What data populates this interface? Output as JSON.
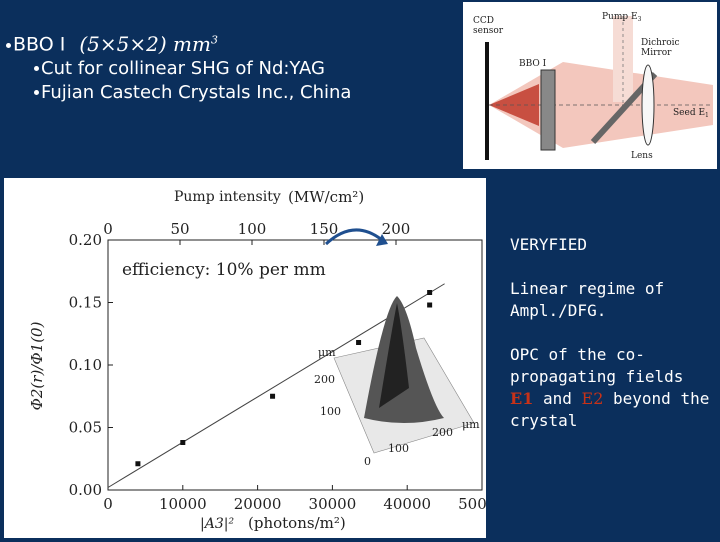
{
  "bullets": {
    "crystal": "BBO I",
    "dimensions": "(5×5×2) mm",
    "dimensions_exp": "3",
    "cut": "Cut for collinear SHG of Nd:YAG",
    "maker": "Fujian Castech Crystals Inc., China"
  },
  "schematic": {
    "ccd": "CCD",
    "sensor": "sensor",
    "pump": "Pump E",
    "pump_sub": "3",
    "bbo": "BBO I",
    "dichroic": "Dichroic",
    "mirror": "Mirror",
    "seed": "Seed E",
    "seed_sub": "1",
    "lens": "Lens"
  },
  "notes": {
    "verified": "VERYFIED",
    "linear": "Linear regime of Ampl./DFG.",
    "opc_a": "OPC of the co-propagating fields",
    "e1": "E1",
    "and": "and",
    "e2": "E2",
    "opc_b": "beyond the crystal"
  },
  "chart_data": {
    "type": "scatter",
    "top_axis_label": "Pump intensity",
    "top_axis_unit": "(MW/cm²)",
    "top_ticks": [
      "0",
      "50",
      "100",
      "150",
      "200"
    ],
    "xlabel": "|A3|²",
    "x_unit": "(photons/m²)",
    "ylabel": "Φ2(r)/Φ1(0)",
    "xlim": [
      0,
      50000
    ],
    "ylim": [
      0,
      0.2
    ],
    "x_ticks": [
      "0",
      "10000",
      "20000",
      "30000",
      "40000",
      "50000"
    ],
    "y_ticks": [
      "0.00",
      "0.05",
      "0.10",
      "0.15",
      "0.20"
    ],
    "annotation": "efficiency: 10% per mm",
    "points": [
      {
        "x": 4000,
        "y": 0.021
      },
      {
        "x": 10000,
        "y": 0.038
      },
      {
        "x": 22000,
        "y": 0.075
      },
      {
        "x": 33500,
        "y": 0.118
      },
      {
        "x": 43000,
        "y": 0.148
      },
      {
        "x": 43000,
        "y": 0.158
      }
    ],
    "fit_line": {
      "x": [
        0,
        45000
      ],
      "y": [
        0.002,
        0.165
      ]
    },
    "inset_labels": {
      "um1": "μm",
      "um2": "μm",
      "t200a": "200",
      "t100a": "100",
      "t0": "0",
      "t100b": "100",
      "t200b": "200"
    }
  }
}
